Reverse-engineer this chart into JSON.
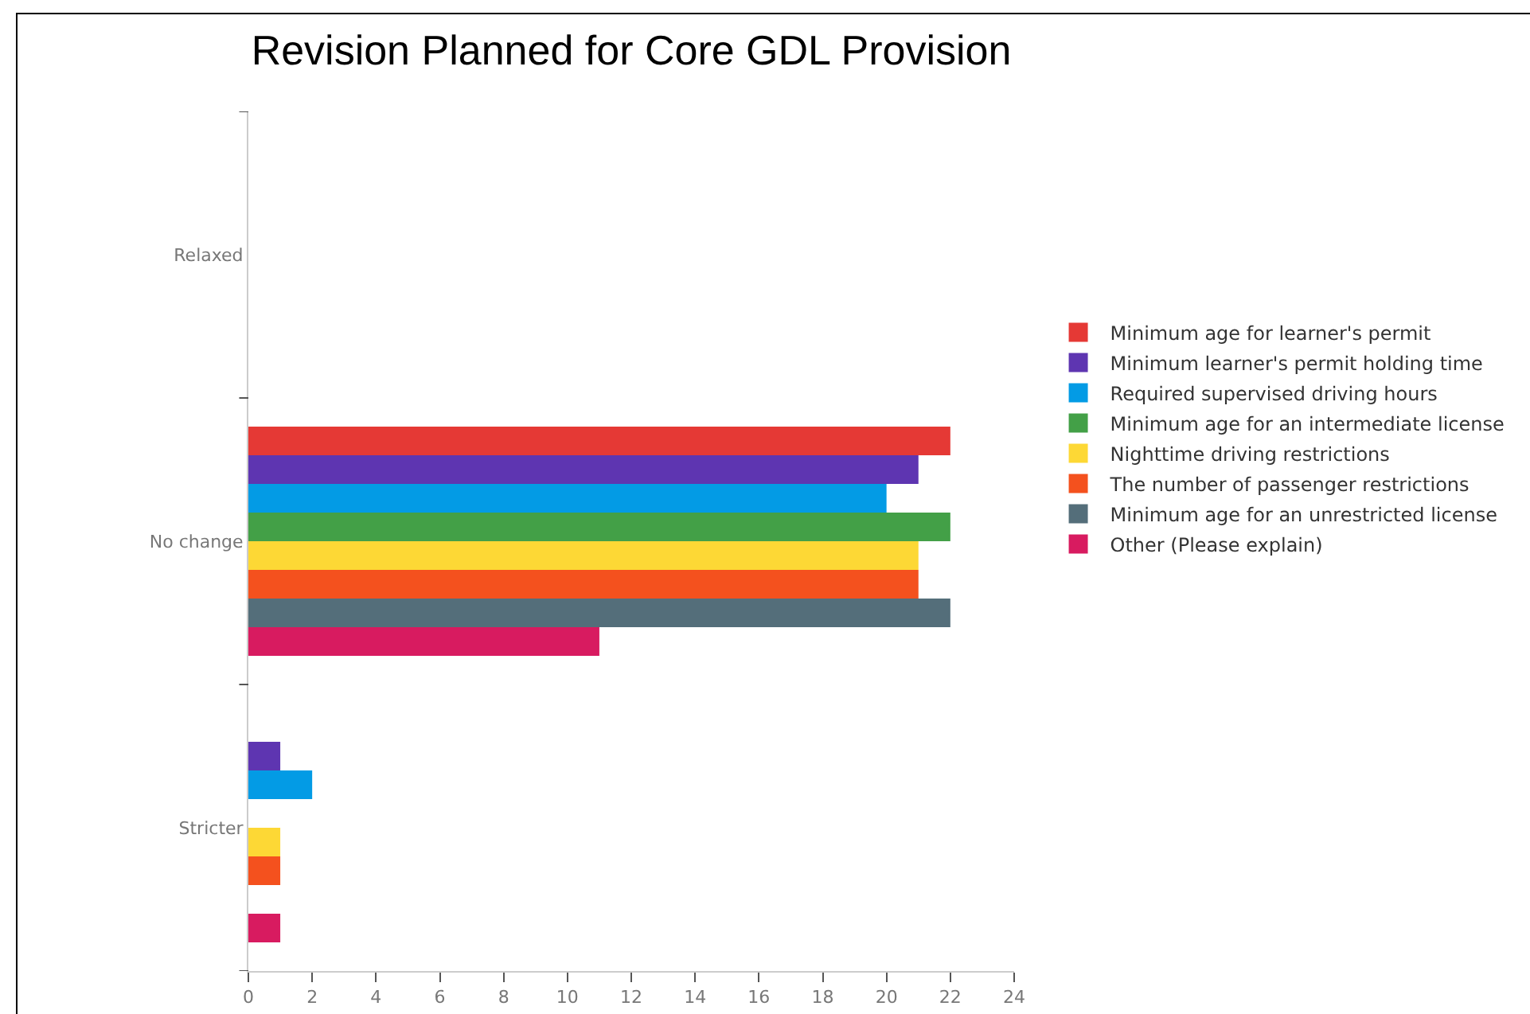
{
  "chart_data": {
    "type": "bar",
    "title": "Revision Planned for Core GDL Provision",
    "orientation": "horizontal",
    "categories": [
      "Relaxed",
      "No change",
      "Stricter"
    ],
    "series": [
      {
        "name": "Minimum age for learner's permit",
        "color": "#e53935",
        "values": [
          0,
          22,
          0
        ]
      },
      {
        "name": "Minimum learner's permit holding time",
        "color": "#5e35b1",
        "values": [
          0,
          21,
          1
        ]
      },
      {
        "name": "Required supervised driving hours",
        "color": "#039be5",
        "values": [
          0,
          20,
          2
        ]
      },
      {
        "name": "Minimum age for an intermediate license",
        "color": "#43a047",
        "values": [
          0,
          22,
          0
        ]
      },
      {
        "name": "Nighttime driving restrictions",
        "color": "#fdd835",
        "values": [
          0,
          21,
          1
        ]
      },
      {
        "name": "The number of passenger restrictions",
        "color": "#f4511e",
        "values": [
          0,
          21,
          1
        ]
      },
      {
        "name": "Minimum age for an unrestricted license",
        "color": "#546e7a",
        "values": [
          0,
          22,
          0
        ]
      },
      {
        "name": "Other (Please explain)",
        "color": "#d81b60",
        "values": [
          0,
          11,
          1
        ]
      }
    ],
    "xlim": [
      0,
      24
    ],
    "xticks": [
      0,
      2,
      4,
      6,
      8,
      10,
      12,
      14,
      16,
      18,
      20,
      22,
      24
    ],
    "grid": false,
    "legend": "right"
  }
}
